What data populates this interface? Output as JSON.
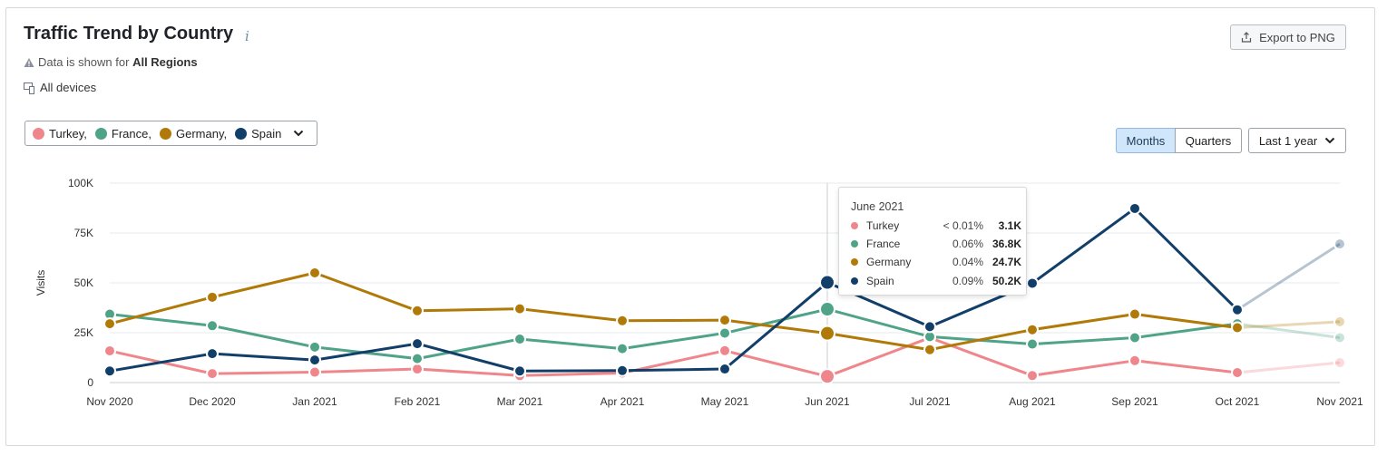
{
  "header": {
    "title": "Traffic Trend by Country",
    "info_icon": "info-icon",
    "note_prefix": "Data is shown for",
    "note_region": "All Regions",
    "devices_label": "All devices",
    "export_label": "Export to PNG"
  },
  "filters": {
    "countries": [
      {
        "label": "Turkey,",
        "color": "#ee868b"
      },
      {
        "label": "France,",
        "color": "#4fa386"
      },
      {
        "label": "Germany,",
        "color": "#b07908"
      },
      {
        "label": "Spain",
        "color": "#123f6a"
      }
    ],
    "granularity": {
      "months": "Months",
      "quarters": "Quarters",
      "selected": "Months"
    },
    "period": "Last 1 year"
  },
  "tooltip": {
    "title": "June 2021",
    "rows": [
      {
        "name": "Turkey",
        "share": "< 0.01%",
        "value": "3.1K",
        "color": "#ee868b"
      },
      {
        "name": "France",
        "share": "0.06%",
        "value": "36.8K",
        "color": "#4fa386"
      },
      {
        "name": "Germany",
        "share": "0.04%",
        "value": "24.7K",
        "color": "#b07908"
      },
      {
        "name": "Spain",
        "share": "0.09%",
        "value": "50.2K",
        "color": "#123f6a"
      }
    ]
  },
  "chart_data": {
    "type": "line",
    "ylabel": "Visits",
    "ylim": [
      0,
      100000
    ],
    "yticks": [
      0,
      25000,
      50000,
      75000,
      100000
    ],
    "ytick_labels": [
      "0",
      "25K",
      "50K",
      "75K",
      "100K"
    ],
    "categories": [
      "Nov 2020",
      "Dec 2020",
      "Jan 2021",
      "Feb 2021",
      "Mar 2021",
      "Apr 2021",
      "May 2021",
      "Jun 2021",
      "Jul 2021",
      "Aug 2021",
      "Sep 2021",
      "Oct 2021",
      "Nov 2021"
    ],
    "highlighted_category": "Jun 2021",
    "faded_last_point": true,
    "grid": true,
    "series": [
      {
        "name": "Turkey",
        "color": "#ee868b",
        "values": [
          15900,
          4500,
          5200,
          6800,
          3500,
          4800,
          16000,
          3100,
          22500,
          3500,
          11000,
          5000,
          10000
        ]
      },
      {
        "name": "France",
        "color": "#4fa386",
        "values": [
          34300,
          28500,
          17800,
          12000,
          21800,
          17000,
          24800,
          36800,
          23000,
          19300,
          22500,
          29500,
          22500
        ]
      },
      {
        "name": "Germany",
        "color": "#b07908",
        "values": [
          29500,
          42800,
          55000,
          36000,
          37000,
          31000,
          31300,
          24700,
          16500,
          26500,
          34300,
          27500,
          30500
        ]
      },
      {
        "name": "Spain",
        "color": "#123f6a",
        "values": [
          5800,
          14500,
          11300,
          19500,
          5800,
          6000,
          6800,
          50200,
          28000,
          49800,
          87300,
          36500,
          69500
        ]
      }
    ]
  }
}
